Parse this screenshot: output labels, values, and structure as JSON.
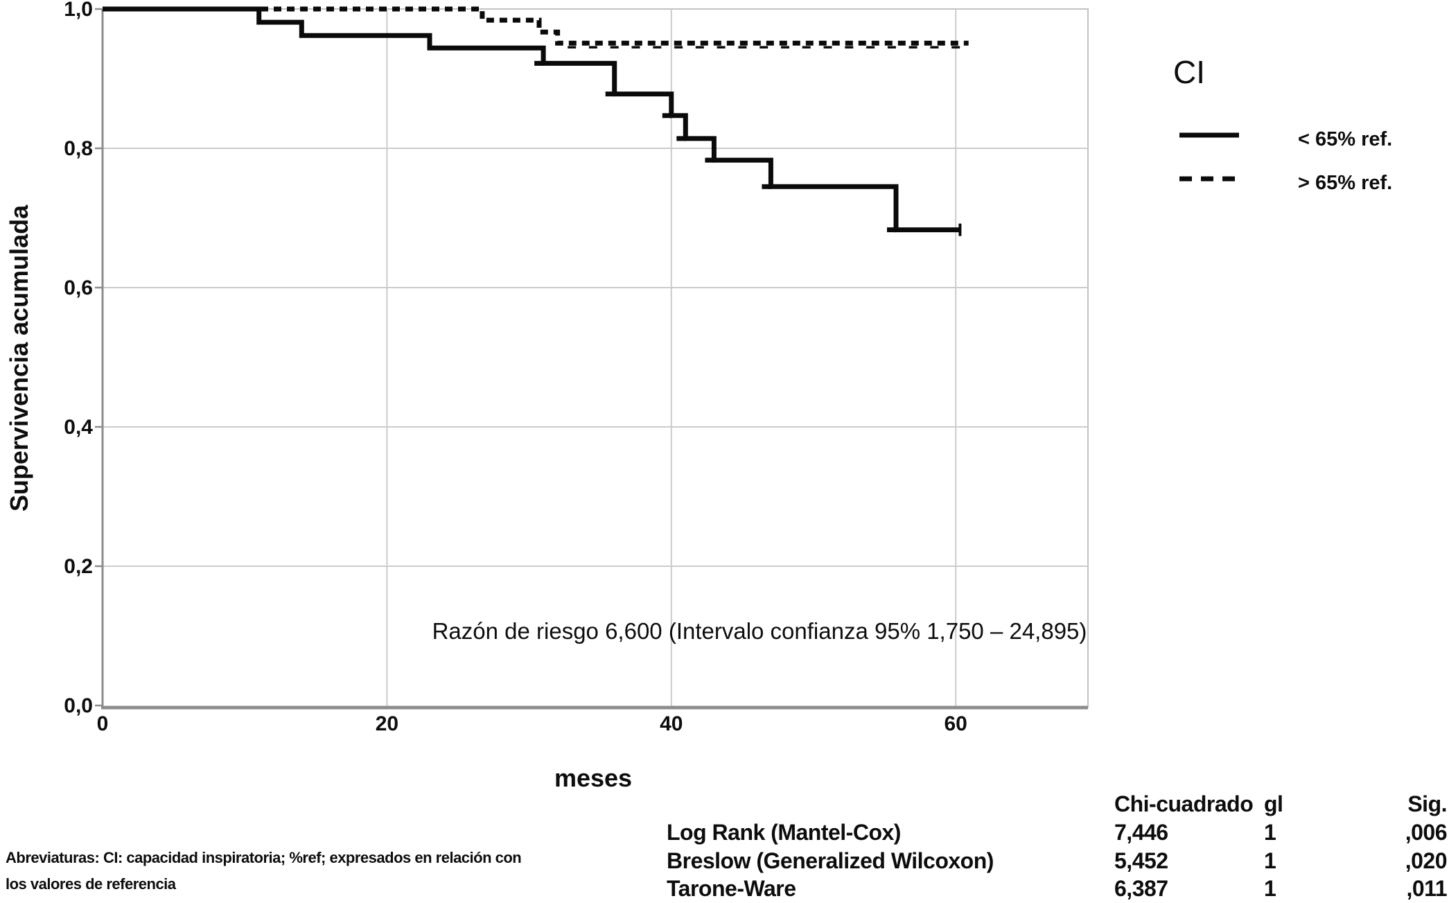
{
  "colors": {
    "curve": "#0a0a0a",
    "grid": "#cbcbcb",
    "frame": "#c2c2c2",
    "axis": "#8c8c8c",
    "text": "#0d0d0d",
    "annotation_red": "#fb0404"
  },
  "chart_data": {
    "type": "line",
    "subtype": "kaplan_meier_step",
    "title": "",
    "xlabel": "meses",
    "ylabel": "Supervivencia acumulada",
    "xlim": [
      0,
      69.3
    ],
    "ylim": [
      0,
      1.0
    ],
    "grid": true,
    "legend_position": "top-right",
    "x_ticks": [
      0,
      20,
      40,
      60
    ],
    "x_tick_labels": [
      "0",
      "20",
      "40",
      "60"
    ],
    "y_ticks": [
      0,
      0.2,
      0.4,
      0.6,
      0.8,
      1.0
    ],
    "y_tick_labels": [
      "0,0",
      "0,2",
      "0,4",
      "0,6",
      "0,8",
      "1,0"
    ],
    "series": [
      {
        "name": "< 65% ref.",
        "line_style": "solid",
        "step_points": [
          [
            0,
            1.0
          ],
          [
            11,
            0.981
          ],
          [
            14,
            0.962
          ],
          [
            23,
            0.944
          ],
          [
            31,
            0.922
          ],
          [
            36,
            0.878
          ],
          [
            40,
            0.847
          ],
          [
            41,
            0.814
          ],
          [
            43,
            0.783
          ],
          [
            47,
            0.745
          ],
          [
            55.8,
            0.683
          ]
        ],
        "end_time": 60.3,
        "censor_times": [
          31,
          36,
          40,
          41,
          43,
          47,
          55.8
        ],
        "end_tick": true
      },
      {
        "name": "> 65% ref.",
        "line_style": "dashed",
        "step_points": [
          [
            0,
            1.0
          ],
          [
            26.7,
            0.984
          ],
          [
            30.7,
            0.967
          ],
          [
            32,
            0.951
          ]
        ],
        "end_time": 60.9,
        "censor_times": [
          33,
          34.5,
          36,
          37.5,
          39,
          40.5,
          42,
          43.5,
          45,
          46.5,
          48,
          49.5,
          51,
          52.5,
          54,
          55.5,
          57,
          58.5,
          60
        ],
        "end_tick": false
      }
    ]
  },
  "legend": {
    "title": "CI",
    "entries": [
      {
        "label": "< 65% ref.",
        "line_style": "solid"
      },
      {
        "label": "> 65% ref.",
        "line_style": "dashed"
      }
    ]
  },
  "annotation": {
    "text": "Razón de riesgo 6,600 (Intervalo confianza 95% 1,750 – 24,895)",
    "color": "#fb0404"
  },
  "stats_table": {
    "col_headers": [
      "Chi-cuadrado",
      "gl",
      "Sig."
    ],
    "rows": [
      {
        "test": "Log Rank (Mantel-Cox)",
        "chi_cuadrado": "7,446",
        "gl": "1",
        "sig": ",006"
      },
      {
        "test": "Breslow (Generalized Wilcoxon)",
        "chi_cuadrado": "5,452",
        "gl": "1",
        "sig": ",020"
      },
      {
        "test": "Tarone-Ware",
        "chi_cuadrado": "6,387",
        "gl": "1",
        "sig": ",011"
      }
    ]
  },
  "footnote": {
    "line1": "Abreviaturas: CI: capacidad inspiratoria; %ref; expresados en relación con",
    "line2": "los valores de referencia"
  }
}
